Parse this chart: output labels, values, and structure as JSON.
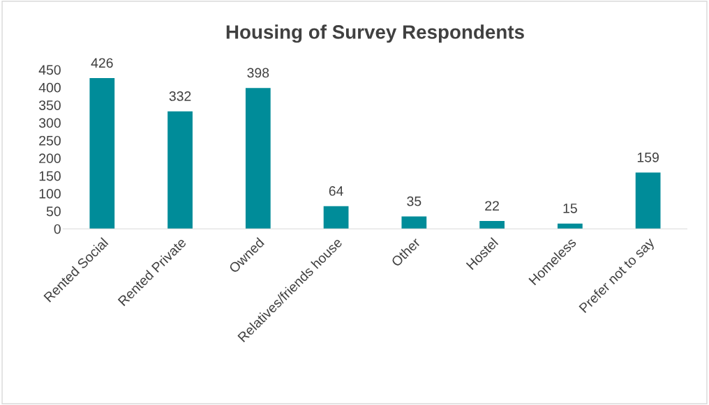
{
  "chart_data": {
    "type": "bar",
    "title": "Housing of Survey Respondents",
    "categories": [
      "Rented Social",
      "Rented Private",
      "Owned",
      "Relatives/friends house",
      "Other",
      "Hostel",
      "Homeless",
      "Prefer not to say"
    ],
    "values": [
      426,
      332,
      398,
      64,
      35,
      22,
      15,
      159
    ],
    "color": "#008c99",
    "ylim": [
      0,
      450
    ],
    "yticks": [
      0,
      50,
      100,
      150,
      200,
      250,
      300,
      350,
      400,
      450
    ],
    "data_labels": true,
    "grid": false
  }
}
